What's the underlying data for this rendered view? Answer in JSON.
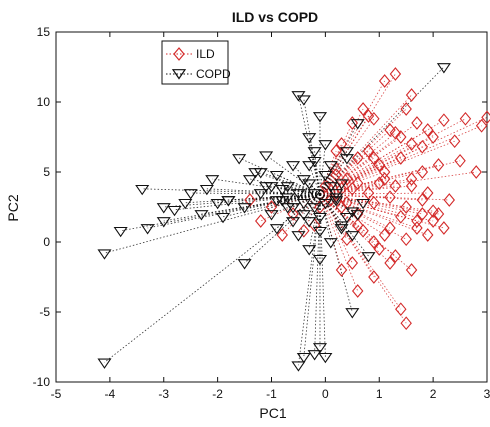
{
  "chart_data": {
    "type": "scatter",
    "title": "ILD vs COPD",
    "xlabel": "PC1",
    "ylabel": "PC2",
    "xlim": [
      -5,
      3
    ],
    "ylim": [
      -10,
      15
    ],
    "xticks": [
      -5,
      -4,
      -3,
      -2,
      -1,
      0,
      1,
      2,
      3
    ],
    "yticks": [
      -10,
      -5,
      0,
      5,
      10,
      15
    ],
    "grid": false,
    "legend_position": "top-left",
    "series": [
      {
        "name": "ILD",
        "color": "#d42a2a",
        "marker": "diamond",
        "x": [
          0.8,
          1.1,
          1.3,
          1.6,
          1.5,
          1.7,
          1.9,
          2.2,
          2.6,
          2.9,
          3.0,
          2.4,
          2.0,
          1.8,
          1.4,
          1.2,
          0.9,
          0.7,
          0.5,
          0.3,
          0.2,
          0.6,
          1.0,
          1.4,
          1.8,
          2.1,
          2.5,
          2.8,
          1.6,
          1.3,
          1.0,
          0.8,
          0.5,
          0.4,
          0.2,
          0.0,
          0.1,
          0.3,
          0.6,
          0.9,
          1.2,
          1.5,
          1.9,
          2.3,
          2.0,
          1.7,
          1.4,
          1.1,
          0.9,
          0.6,
          0.4,
          0.2,
          1.0,
          1.3,
          1.6,
          0.7,
          0.4,
          1.8,
          2.2,
          1.2,
          0.9,
          0.6,
          1.5,
          1.9,
          1.1,
          0.8,
          1.3,
          1.6,
          1.4,
          0.5,
          0.3,
          -0.2,
          -0.4,
          -0.6,
          -0.8,
          -1.0,
          -1.2,
          -1.4,
          1.7,
          1.5,
          1.2,
          2.0,
          0.9,
          1.1,
          0.6,
          0.3,
          -0.1,
          1.6,
          1.8,
          2.1
        ],
        "y": [
          9.0,
          11.5,
          12.0,
          10.5,
          9.5,
          8.5,
          8.0,
          8.7,
          8.8,
          8.3,
          8.9,
          7.2,
          7.5,
          6.8,
          7.5,
          8.0,
          8.8,
          9.5,
          8.5,
          7.0,
          6.5,
          6.0,
          5.5,
          6.0,
          5.0,
          5.5,
          5.8,
          5.0,
          4.5,
          4.0,
          4.2,
          3.5,
          3.8,
          4.5,
          5.2,
          4.0,
          3.0,
          2.5,
          2.0,
          2.8,
          3.2,
          2.5,
          3.5,
          3.0,
          1.5,
          1.0,
          1.8,
          0.5,
          0.0,
          1.2,
          2.8,
          4.8,
          -0.5,
          -1.0,
          -2.0,
          0.8,
          0.2,
          2.0,
          1.0,
          -1.5,
          -2.5,
          -3.5,
          -5.8,
          0.5,
          4.5,
          6.5,
          7.8,
          7.0,
          -4.8,
          -1.5,
          -2.0,
          1.2,
          0.8,
          2.0,
          0.5,
          2.5,
          1.5,
          3.0,
          1.5,
          0.2,
          1.0,
          2.2,
          6.0,
          5.0,
          4.2,
          3.8,
          2.5,
          4.0,
          3.0,
          2.0
        ]
      },
      {
        "name": "COPD",
        "color": "#111111",
        "marker": "triangle-down",
        "x": [
          -4.1,
          -4.1,
          -3.8,
          -3.4,
          -3.0,
          -3.3,
          -3.0,
          -2.8,
          -2.5,
          -2.3,
          -2.2,
          -2.0,
          -1.9,
          -1.8,
          -1.5,
          -1.4,
          -1.2,
          -1.0,
          -1.6,
          -1.3,
          -1.1,
          -0.9,
          -0.8,
          -0.7,
          -0.6,
          -0.5,
          -0.4,
          -0.3,
          -0.2,
          -0.1,
          0.0,
          0.1,
          0.2,
          -0.5,
          -0.4,
          -0.3,
          -0.2,
          -0.1,
          0.0,
          0.1,
          0.3,
          0.5,
          -0.6,
          -0.8,
          -1.0,
          -1.2,
          -0.7,
          -0.9,
          -0.5,
          -0.3,
          -0.1,
          0.2,
          0.4,
          0.6,
          -0.4,
          -0.2,
          0.0,
          0.3,
          0.5,
          0.7,
          -0.5,
          -0.4,
          -0.2,
          -0.1,
          0.0,
          2.2,
          0.6,
          0.3,
          0.1,
          -0.1,
          -0.3,
          0.8,
          0.5,
          -1.5,
          -1.8,
          -2.1,
          -2.6,
          -1.1,
          -0.6,
          -0.2,
          0.4,
          0.2,
          -0.7,
          -0.3,
          0.0,
          0.4,
          -0.9,
          -0.4
        ],
        "y": [
          -8.6,
          -0.8,
          0.8,
          3.8,
          2.5,
          1.0,
          1.5,
          2.3,
          3.5,
          2.0,
          3.8,
          2.8,
          1.8,
          3.0,
          2.5,
          4.5,
          3.5,
          4.0,
          6.0,
          5.0,
          6.2,
          4.8,
          3.0,
          2.5,
          1.5,
          3.5,
          4.5,
          5.5,
          2.5,
          1.8,
          2.8,
          4.0,
          3.2,
          10.5,
          10.2,
          7.5,
          6.5,
          9.0,
          7.0,
          5.5,
          4.2,
          2.2,
          2.5,
          3.8,
          2.0,
          5.0,
          4.0,
          1.0,
          0.5,
          1.5,
          0.8,
          3.5,
          6.0,
          8.5,
          2.8,
          3.5,
          4.8,
          1.2,
          0.5,
          2.8,
          -8.8,
          -8.2,
          -8.0,
          -7.5,
          -8.2,
          12.5,
          2.0,
          1.0,
          0.0,
          -1.2,
          -0.5,
          -1.0,
          -5.0,
          -1.5,
          3.0,
          4.5,
          2.8,
          4.0,
          5.5,
          5.8,
          1.8,
          3.0,
          3.2,
          4.2,
          4.8,
          6.5,
          3.0,
          2.0
        ]
      }
    ]
  }
}
